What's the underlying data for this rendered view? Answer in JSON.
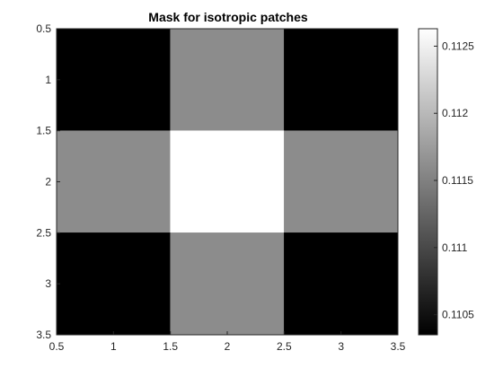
{
  "chart_data": {
    "type": "heatmap",
    "title": "Mask for isotropic patches",
    "xlabel": "",
    "ylabel": "",
    "x": [
      1,
      2,
      3
    ],
    "y": [
      1,
      2,
      3
    ],
    "values": [
      [
        0.11035,
        0.1116,
        0.11035
      ],
      [
        0.1116,
        0.11263,
        0.1116
      ],
      [
        0.11035,
        0.1116,
        0.11035
      ]
    ],
    "xlim": [
      0.5,
      3.5
    ],
    "ylim": [
      0.5,
      3.5
    ],
    "y_direction": "reversed",
    "xticks": [
      0.5,
      1,
      1.5,
      2,
      2.5,
      3,
      3.5
    ],
    "xtick_labels": [
      "0.5",
      "1",
      "1.5",
      "2",
      "2.5",
      "3",
      "3.5"
    ],
    "yticks": [
      0.5,
      1,
      1.5,
      2,
      2.5,
      3,
      3.5
    ],
    "ytick_labels": [
      "0.5",
      "1",
      "1.5",
      "2",
      "2.5",
      "3",
      "3.5"
    ],
    "colormap": "gray",
    "colorbar": {
      "location": "right",
      "range": [
        0.11035,
        0.11263
      ],
      "ticks": [
        0.1105,
        0.111,
        0.1115,
        0.112,
        0.1125
      ],
      "tick_labels": [
        "0.1105",
        "0.111",
        "0.1115",
        "0.112",
        "0.1125"
      ]
    },
    "grid": false
  }
}
